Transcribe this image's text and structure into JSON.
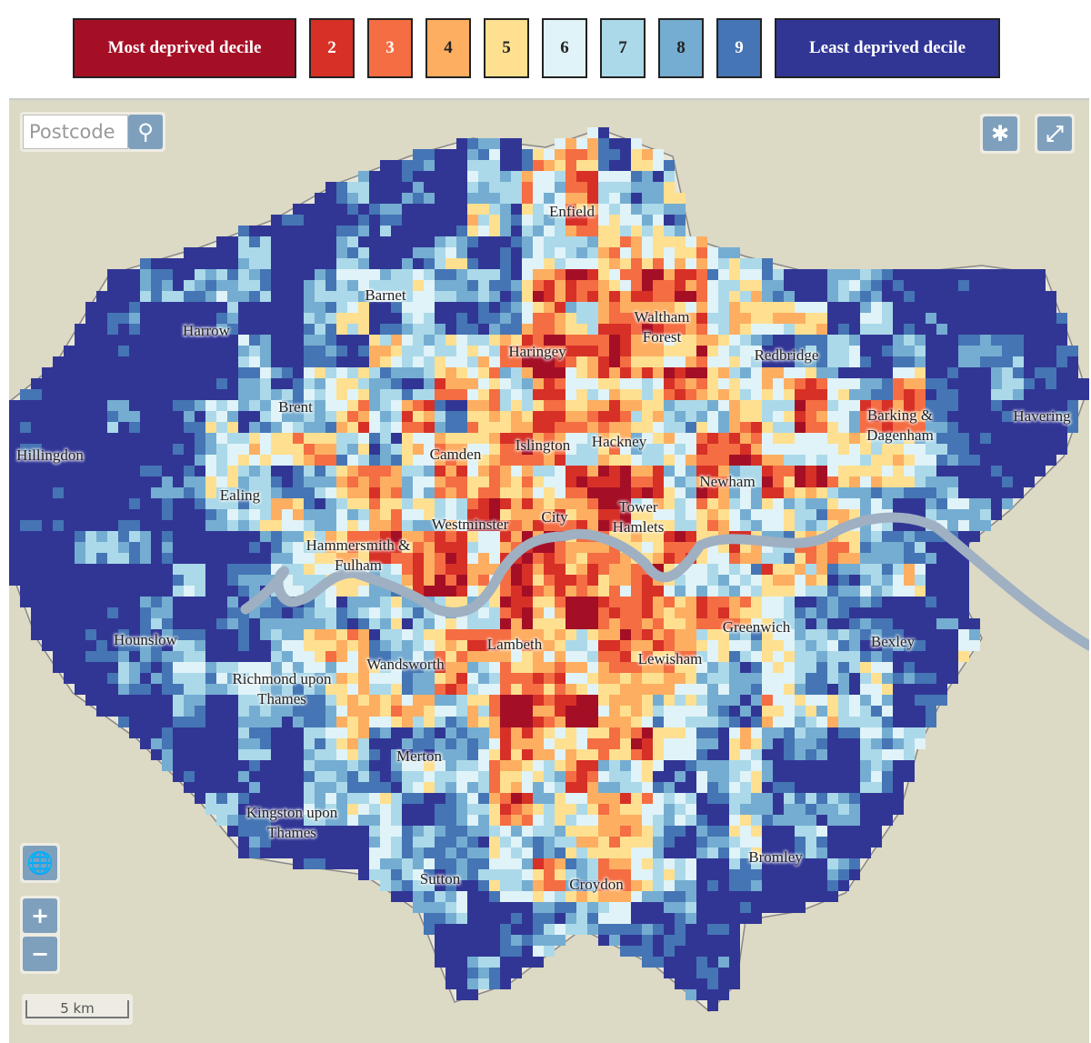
{
  "legend": [
    {
      "label": "Most deprived decile",
      "color": "#a50f26"
    },
    {
      "label": "2",
      "color": "#d73027"
    },
    {
      "label": "3",
      "color": "#f46d43"
    },
    {
      "label": "4",
      "color": "#fdae61"
    },
    {
      "label": "5",
      "color": "#fee090"
    },
    {
      "label": "6",
      "color": "#e0f3f8"
    },
    {
      "label": "7",
      "color": "#abd9e9"
    },
    {
      "label": "8",
      "color": "#74add1"
    },
    {
      "label": "9",
      "color": "#4575b4"
    },
    {
      "label": "Least deprived decile",
      "color": "#313695"
    }
  ],
  "search": {
    "placeholder": "Postcode"
  },
  "zoom": {
    "in": "+",
    "out": "−"
  },
  "scale": "5 km",
  "boroughs": [
    "Enfield",
    "Barnet",
    "Harrow",
    "Waltham Forest",
    "Haringey",
    "Redbridge",
    "Brent",
    "Barking & Dagenham",
    "Havering",
    "Hillingdon",
    "Camden",
    "Islington",
    "Hackney",
    "Newham",
    "Ealing",
    "Westminster",
    "City",
    "Tower Hamlets",
    "Hammersmith & Fulham",
    "Hounslow",
    "Lambeth",
    "Greenwich",
    "Bexley",
    "Lewisham",
    "Wandsworth",
    "Richmond upon Thames",
    "Merton",
    "Kingston upon Thames",
    "Bromley",
    "Sutton",
    "Croydon"
  ]
}
